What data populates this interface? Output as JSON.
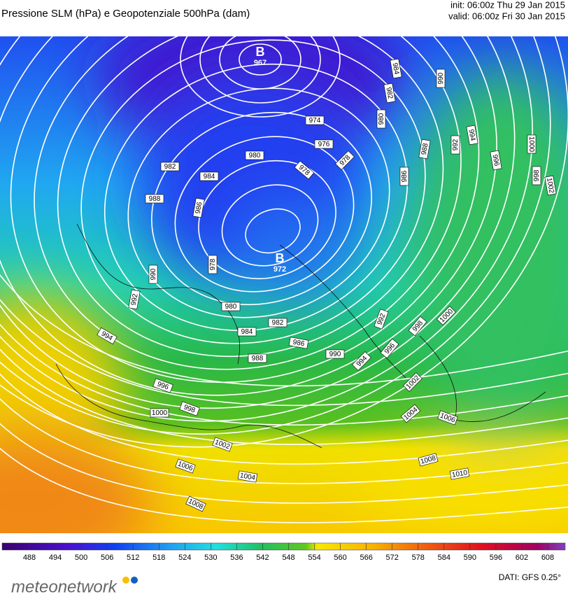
{
  "header": {
    "title": "Pressione SLM (hPa) e Geopotenziale 500hPa (dam)",
    "init": "init: 06:00z Thu 29 Jan 2015",
    "valid": "valid: 06:00z Fri 30 Jan 2015"
  },
  "lows": [
    {
      "symbol": "B",
      "value": 967
    },
    {
      "symbol": "B",
      "value": 972
    }
  ],
  "isobar_labels": [
    974,
    976,
    980,
    982,
    984,
    978,
    978,
    988,
    986,
    984,
    982,
    980,
    990,
    988,
    986,
    992,
    994,
    996,
    1000,
    998,
    1002,
    978,
    990,
    992,
    980,
    984,
    982,
    986,
    988,
    990,
    992,
    994,
    996,
    998,
    1000,
    994,
    996,
    998,
    1000,
    1002,
    1004,
    1006,
    1002,
    1006,
    1004,
    1008,
    1010,
    1008
  ],
  "colorbar": {
    "ticks": [
      488,
      494,
      500,
      506,
      512,
      518,
      524,
      530,
      536,
      542,
      548,
      554,
      560,
      566,
      572,
      578,
      584,
      590,
      596,
      602,
      608
    ]
  },
  "footer": {
    "logo": "meteonetwork",
    "source": "DATI: GFS 0.25°"
  }
}
